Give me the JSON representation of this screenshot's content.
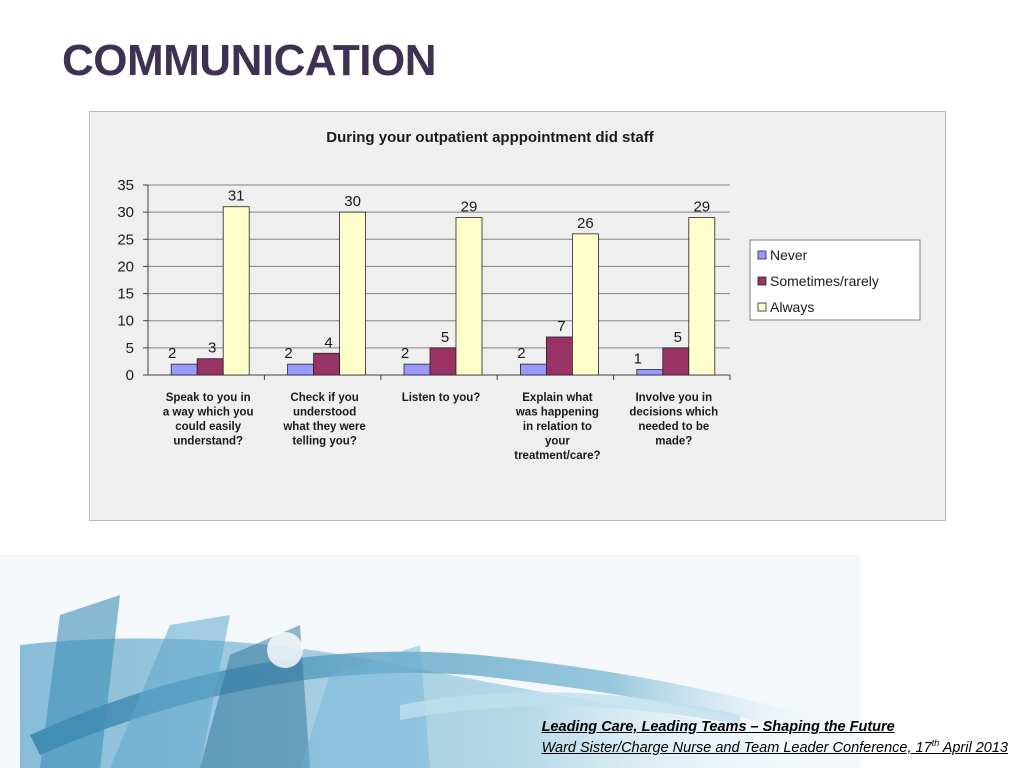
{
  "slide": {
    "title": "COMMUNICATION",
    "footer_line1": "Leading Care, Leading Teams – Shaping the Future",
    "footer_line2_pre": "Ward Sister/Charge Nurse and Team Leader Conference, 17",
    "footer_line2_sup": "th",
    "footer_line2_post": " April 2013"
  },
  "chart_data": {
    "type": "bar",
    "title": "During your outpatient apppointment did staff",
    "categories": [
      [
        "Speak to you in",
        "a way which you",
        "could easily",
        "understand?"
      ],
      [
        "Check if you",
        "understood",
        "what they were",
        "telling you?"
      ],
      [
        "Listen to you?"
      ],
      [
        "Explain what",
        "was happening",
        "in relation to",
        "your",
        "treatment/care?"
      ],
      [
        "Involve you in",
        "decisions which",
        "needed to be",
        "made?"
      ]
    ],
    "series": [
      {
        "name": "Never",
        "color": "#9999ff",
        "values": [
          2,
          2,
          2,
          2,
          1
        ]
      },
      {
        "name": "Sometimes/rarely",
        "color": "#993366",
        "values": [
          3,
          4,
          5,
          7,
          5
        ]
      },
      {
        "name": "Always",
        "color": "#ffffcc",
        "values": [
          31,
          30,
          29,
          26,
          29
        ]
      }
    ],
    "ylim": [
      0,
      35
    ],
    "yticks": [
      0,
      5,
      10,
      15,
      20,
      25,
      30,
      35
    ],
    "grid": true,
    "legend": "right",
    "data_labels": true
  }
}
